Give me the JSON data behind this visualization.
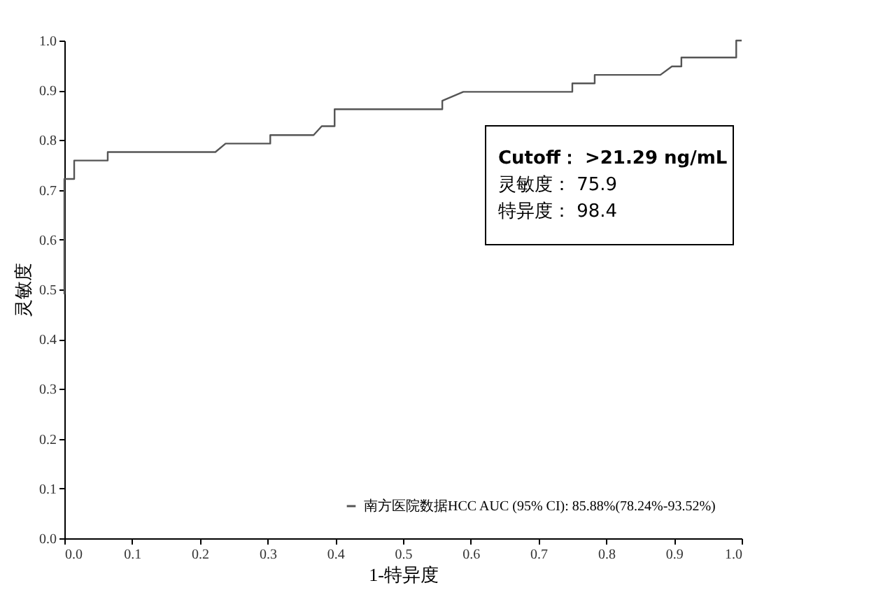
{
  "chart_data": {
    "type": "line",
    "xlabel": "1-特异度",
    "ylabel": "灵敏度",
    "x": [
      0,
      0,
      0.0145,
      0.0145,
      0.064,
      0.064,
      0.223,
      0.238,
      0.304,
      0.304,
      0.368,
      0.38,
      0.399,
      0.399,
      0.558,
      0.558,
      0.589,
      0.75,
      0.75,
      0.783,
      0.783,
      0.88,
      0.897,
      0.911,
      0.911,
      0.992,
      0.992,
      1.0
    ],
    "series": [
      {
        "name": "南方医院数据HCC AUC (95% CI): 85.88%(78.24%-93.52%)",
        "color": "#555555",
        "values": [
          0.49,
          0.722,
          0.722,
          0.759,
          0.759,
          0.776,
          0.776,
          0.793,
          0.793,
          0.81,
          0.81,
          0.828,
          0.828,
          0.862,
          0.862,
          0.879,
          0.897,
          0.897,
          0.914,
          0.914,
          0.931,
          0.931,
          0.948,
          0.948,
          0.966,
          0.966,
          1.0,
          1.0
        ]
      }
    ],
    "xlim": [
      0,
      1
    ],
    "ylim": [
      0,
      1
    ],
    "xticks": [
      {
        "value": 0,
        "label": "0.0"
      },
      0.1,
      0.2,
      0.3,
      0.4,
      0.5,
      0.6,
      0.7,
      0.8,
      0.9,
      {
        "value": 1,
        "label": "1.0"
      }
    ],
    "yticks": [
      {
        "value": 0,
        "label": "0.0"
      },
      0.1,
      0.2,
      0.3,
      0.4,
      0.5,
      0.6,
      0.7,
      0.8,
      0.9,
      {
        "value": 1,
        "label": "1.0"
      }
    ],
    "annotations": [
      "Cutoff： >21.29 ng/mL",
      "灵敏度： 75.9",
      "特异度： 98.4"
    ],
    "legend": "bottom right",
    "marker": "none",
    "line_style": "solid"
  }
}
